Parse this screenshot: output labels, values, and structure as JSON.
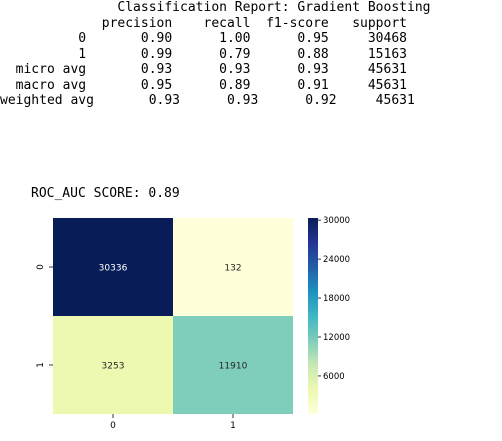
{
  "report": {
    "lines": [
      "               Classification Report: Gradient Boosting",
      "",
      "             precision    recall  f1-score   support",
      "",
      "          0       0.90      1.00      0.95     30468",
      "          1       0.99      0.79      0.88     15163",
      "",
      "  micro avg       0.93      0.93      0.93     45631",
      "  macro avg       0.95      0.89      0.91     45631",
      "weighted avg       0.93      0.93      0.92     45631"
    ]
  },
  "roc_auc_line": "ROC_AUC SCORE: 0.89",
  "chart_data": {
    "type": "heatmap",
    "title": "",
    "xlabel": "",
    "ylabel": "",
    "x_categories": [
      "0",
      "1"
    ],
    "y_categories": [
      "0",
      "1"
    ],
    "values": [
      [
        30336,
        132
      ],
      [
        3253,
        11910
      ]
    ],
    "colormap": "YlGnBu",
    "colorbar": {
      "ticks": [
        6000,
        12000,
        18000,
        24000,
        30000
      ],
      "tick_labels": [
        "6000",
        "12000",
        "18000",
        "24000",
        "30000"
      ],
      "range": [
        132,
        30336
      ]
    },
    "cell_colors": [
      [
        "#081d58",
        "#ffffd9"
      ],
      [
        "#edf8b1",
        "#7fcdbb"
      ]
    ],
    "cell_text_colors": [
      [
        "#ffffff",
        "#262626"
      ],
      [
        "#262626",
        "#262626"
      ]
    ]
  }
}
